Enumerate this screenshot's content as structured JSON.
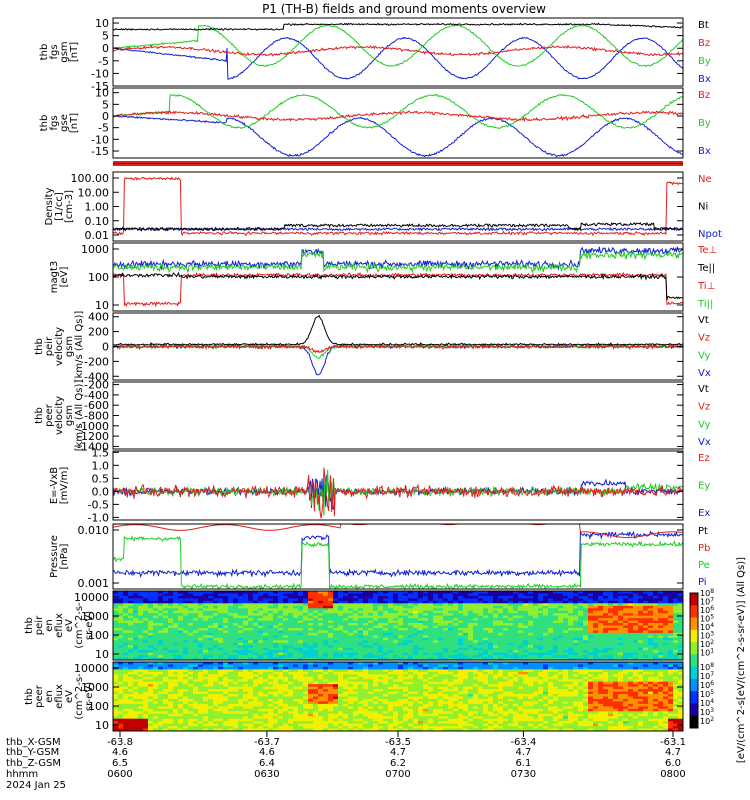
{
  "title": "P1 (TH-B) fields and ground moments overview",
  "colors": {
    "black": "#000000",
    "red": "#e0201e",
    "green": "#22cc22",
    "blue": "#1020d0"
  },
  "chart_data": [
    {
      "type": "line",
      "id": "fgs_gsm",
      "ylabel": [
        "thb",
        "fgs",
        "gsm",
        "[nT]"
      ],
      "ylim": [
        -15,
        12
      ],
      "yticks": [
        "10",
        "5",
        "0",
        "-5",
        "-10",
        "-15"
      ],
      "ytick_values": [
        10,
        5,
        0,
        -5,
        -10,
        -15
      ],
      "legend": [
        {
          "name": "Bt",
          "color": "black"
        },
        {
          "name": "Bz",
          "color": "red"
        },
        {
          "name": "By",
          "color": "green"
        },
        {
          "name": "Bx",
          "color": "blue"
        }
      ]
    },
    {
      "type": "line",
      "id": "fgs_gse",
      "ylabel": [
        "thb",
        "fgs",
        "gse",
        "[nT]"
      ],
      "ylim": [
        -18,
        12
      ],
      "yticks": [
        "10",
        "5",
        "0",
        "-5",
        "-10",
        "-15"
      ],
      "ytick_values": [
        10,
        5,
        0,
        -5,
        -10,
        -15
      ],
      "legend": [
        {
          "name": "Bz",
          "color": "red"
        },
        {
          "name": "By",
          "color": "green"
        },
        {
          "name": "Bx",
          "color": "blue"
        }
      ]
    },
    {
      "type": "line",
      "id": "density",
      "ylabel": [
        "Density",
        "[1/cc]",
        "[cm-3]"
      ],
      "yscale": "log",
      "yticks": [
        "100.00",
        "10.00",
        "1.00",
        "0.10",
        "0.01"
      ],
      "legend": [
        {
          "name": "Ne",
          "color": "red"
        },
        {
          "name": "Ni",
          "color": "black"
        },
        {
          "name": "Npot",
          "color": "blue"
        }
      ]
    },
    {
      "type": "line",
      "id": "temp",
      "ylabel": [
        "magt3",
        "[eV]"
      ],
      "yscale": "log",
      "yticks": [
        "1000",
        "100",
        "10"
      ],
      "legend": [
        {
          "name": "Te⊥",
          "color": "red"
        },
        {
          "name": "Te||",
          "color": "black"
        },
        {
          "name": "Ti⊥",
          "color": "red"
        },
        {
          "name": "Ti||",
          "color": "green"
        }
      ]
    },
    {
      "type": "line",
      "id": "peir_vel",
      "ylabel": [
        "thb",
        "peir",
        "velocity",
        "gsm",
        "[km/s (All Qs)]"
      ],
      "ylim": [
        -450,
        450
      ],
      "yticks": [
        "400",
        "200",
        "0",
        "-200",
        "-400"
      ],
      "ytick_values": [
        400,
        200,
        0,
        -200,
        -400
      ],
      "legend": [
        {
          "name": "Vt",
          "color": "black"
        },
        {
          "name": "Vz",
          "color": "red"
        },
        {
          "name": "Vy",
          "color": "green"
        },
        {
          "name": "Vx",
          "color": "blue"
        }
      ]
    },
    {
      "type": "line",
      "id": "peer_vel",
      "ylabel": [
        "thb",
        "peer",
        "velocity",
        "gsm",
        "[km/s (All Qs)]"
      ],
      "ylim": [
        -1450,
        -150
      ],
      "yticks": [
        "-200",
        "-400",
        "-600",
        "-800",
        "-1000",
        "-1200",
        "-1400"
      ],
      "ytick_values": [
        -200,
        -400,
        -600,
        -800,
        -1000,
        -1200,
        -1400
      ],
      "legend": [
        {
          "name": "Vt",
          "color": "black"
        },
        {
          "name": "Vz",
          "color": "red"
        },
        {
          "name": "Vy",
          "color": "green"
        },
        {
          "name": "Vx",
          "color": "blue"
        }
      ]
    },
    {
      "type": "line",
      "id": "efield",
      "ylabel": [
        "E=-VxB",
        "[mV/m]"
      ],
      "ylim": [
        -1.1,
        1.55
      ],
      "yticks": [
        "1.5",
        "1.0",
        "0.5",
        "0.0",
        "-0.5",
        "-1.0"
      ],
      "ytick_values": [
        1.5,
        1.0,
        0.5,
        0.0,
        -0.5,
        -1.0
      ],
      "legend": [
        {
          "name": "Ez",
          "color": "red"
        },
        {
          "name": "Ey",
          "color": "green"
        },
        {
          "name": "Ex",
          "color": "blue"
        }
      ]
    },
    {
      "type": "line",
      "id": "pressure",
      "ylabel": [
        "Pressure",
        "[nPa]"
      ],
      "yscale": "log",
      "yticks": [
        "0.010",
        "0.001"
      ],
      "legend": [
        {
          "name": "Pt",
          "color": "black"
        },
        {
          "name": "Pb",
          "color": "red"
        },
        {
          "name": "Pe",
          "color": "green"
        },
        {
          "name": "Pi",
          "color": "blue"
        }
      ]
    },
    {
      "type": "heatmap",
      "id": "peir_en",
      "ylabel": [
        "thb",
        "peir",
        "en",
        "eflux",
        "eV",
        "(cm^2-s-",
        "sr-eV)"
      ],
      "yscale": "log",
      "yticks": [
        "10000",
        "1000",
        "100",
        "10"
      ]
    },
    {
      "type": "heatmap",
      "id": "peer_en",
      "ylabel": [
        "thb",
        "peer",
        "en",
        "eflux",
        "eV",
        "(cm^2-s-",
        "sr-eV)"
      ],
      "yscale": "log",
      "yticks": [
        "10000",
        "1000",
        "100",
        "10"
      ]
    }
  ],
  "colorbar": {
    "label": "[eV/(cm^2-s[eV/(cm^2-s-sr-eV)] (All Qs)]",
    "ticks": [
      "10^8",
      "10^7",
      "10^6",
      "10^5",
      "10^4",
      "10^3",
      "10^2",
      "10^1"
    ]
  },
  "colorbar2_ticks": [
    "10^8",
    "10^7",
    "10^6",
    "10^5",
    "10^4",
    "10^3",
    "10^2"
  ],
  "xaxis": {
    "row_labels": [
      "thb_X-GSM",
      "thb_Y-GSM",
      "thb_Z-GSM",
      "hhmm",
      "2024 Jan 25"
    ],
    "columns": [
      {
        "x": "-63.8",
        "y": "4.6",
        "z": "6.5",
        "hhmm": "0600"
      },
      {
        "x": "-63.7",
        "y": "4.6",
        "z": "6.4",
        "hhmm": "0630"
      },
      {
        "x": "-63.5",
        "y": "4.7",
        "z": "6.2",
        "hhmm": "0700"
      },
      {
        "x": "-63.4",
        "y": "4.7",
        "z": "6.1",
        "hhmm": "0730"
      },
      {
        "x": "-63.1",
        "y": "4.7",
        "z": "6.0",
        "hhmm": "0800"
      }
    ]
  }
}
